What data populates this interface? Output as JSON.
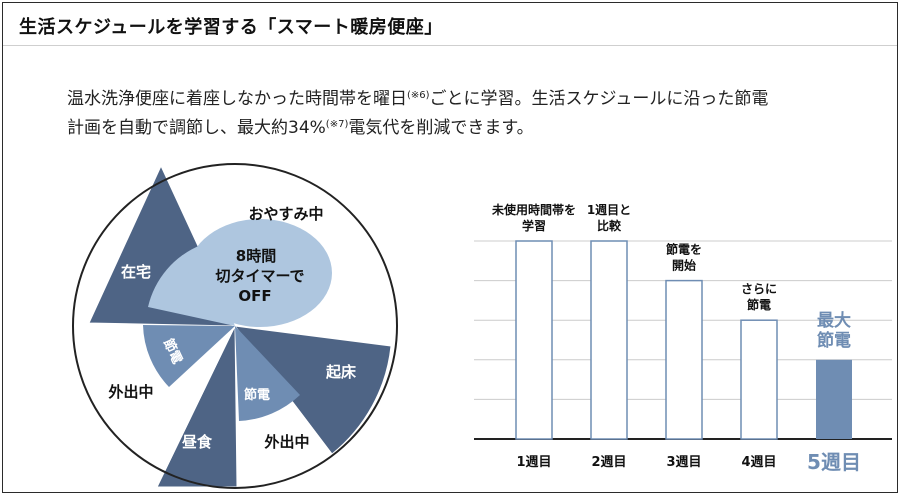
{
  "header": {
    "title": "生活スケジュールを学習する「スマート暖房便座」"
  },
  "description": {
    "line1_a": "温水洗浄便座に着座しなかった時間帯を曜日",
    "line1_note": "(※6)",
    "line1_b": "ごとに学習。生活スケジュールに沿った節電",
    "line2_a": "計画を自動で調節し、最大約34%",
    "line2_note": "(※7)",
    "line2_b": "電気代を削減できます。"
  },
  "colors": {
    "dark": "#4e6485",
    "mid": "#6f8db3",
    "light": "#aec6df",
    "white": "#ffffff",
    "axis": "#222222"
  },
  "pie": {
    "segments": [
      {
        "label": "おやすみ中",
        "color": "white"
      },
      {
        "label": "起床",
        "color": "dark"
      },
      {
        "label": "外出中",
        "color": "white"
      },
      {
        "label": "昼食",
        "color": "dark"
      },
      {
        "label": "外出中",
        "color": "white"
      },
      {
        "label": "在宅",
        "color": "dark"
      }
    ],
    "timer_text": [
      "8時間",
      "切タイマーで",
      "OFF"
    ],
    "saving_label": "節電"
  },
  "chart_data": {
    "type": "bar",
    "categories": [
      "1週目",
      "2週目",
      "3週目",
      "4週目",
      "5週目"
    ],
    "values": [
      100,
      100,
      80,
      60,
      40
    ],
    "ylim": [
      0,
      100
    ],
    "annotations": [
      [
        "未使用時間帯を",
        "学習"
      ],
      [
        "1週目と",
        "比較"
      ],
      [
        "節電を",
        "開始"
      ],
      [
        "さらに",
        "節電"
      ],
      [
        "最大",
        "節電"
      ]
    ],
    "title": "",
    "xlabel": "",
    "ylabel": "",
    "grid": true
  }
}
